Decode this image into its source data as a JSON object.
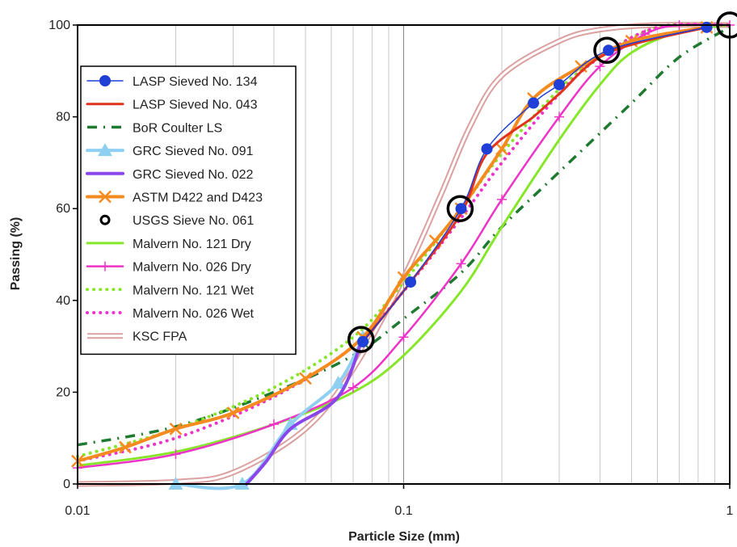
{
  "chart_data": {
    "type": "line",
    "title": "",
    "xlabel": "Particle Size (mm)",
    "ylabel": "Passing (%)",
    "xscale": "log",
    "xlim": [
      0.01,
      1
    ],
    "ylim": [
      0,
      100
    ],
    "x_ticks": [
      "0.01",
      "0.1",
      "1"
    ],
    "y_ticks": [
      "0",
      "20",
      "40",
      "60",
      "80",
      "100"
    ],
    "grid": "vertical minor log gridlines",
    "legend_position": "left",
    "series": [
      {
        "name": "LASP Sieved No. 134",
        "color": "#1f3fd6",
        "style": "line-dot",
        "marker": "circle-filled",
        "x": [
          0.075,
          0.105,
          0.15,
          0.18,
          0.25,
          0.3,
          0.425,
          0.85
        ],
        "y": [
          31,
          44,
          60,
          73,
          83,
          87,
          94.5,
          99.5
        ],
        "show_markers": true
      },
      {
        "name": "LASP Sieved No. 043",
        "color": "#e0321c",
        "style": "solid",
        "x": [
          0.075,
          0.105,
          0.15,
          0.18,
          0.25,
          0.3,
          0.425,
          0.85
        ],
        "y": [
          31,
          44,
          59,
          72,
          80,
          85,
          94,
          99.5
        ]
      },
      {
        "name": "BoR Coulter LS",
        "color": "#1e7a2e",
        "style": "dashdot",
        "x": [
          0.01,
          0.02,
          0.04,
          0.07,
          0.1,
          0.15,
          0.2,
          0.3,
          0.5,
          0.7,
          1.0
        ],
        "y": [
          8.5,
          12.5,
          20,
          28,
          36,
          46,
          56,
          68,
          83,
          93,
          99.5
        ]
      },
      {
        "name": "GRC Sieved No. 091",
        "color": "#8fd0f2",
        "style": "thick",
        "marker": "triangle",
        "x": [
          0.02,
          0.032,
          0.045,
          0.063,
          0.075
        ],
        "y": [
          0,
          0,
          13,
          22,
          32
        ],
        "show_markers": true
      },
      {
        "name": "GRC Sieved No. 022",
        "color": "#8a46e8",
        "style": "thick",
        "x": [
          0.033,
          0.038,
          0.045,
          0.063,
          0.075
        ],
        "y": [
          0,
          5,
          12,
          19,
          32
        ]
      },
      {
        "name": "ASTM D422 and D423",
        "color": "#f58a1f",
        "style": "thick",
        "marker": "x",
        "x": [
          0.01,
          0.014,
          0.02,
          0.03,
          0.05,
          0.075,
          0.1,
          0.125,
          0.15,
          0.2,
          0.25,
          0.35,
          0.5,
          0.85
        ],
        "y": [
          5,
          8,
          12,
          15.5,
          23,
          32,
          45,
          53,
          60,
          73,
          84,
          91,
          96.5,
          99.5
        ],
        "show_markers": true
      },
      {
        "name": "USGS Sieve No. 061",
        "color": "#000000",
        "style": "none",
        "marker": "circle-open",
        "x": [
          0.074,
          0.149,
          0.42,
          1.0
        ],
        "y": [
          31.5,
          60,
          94.5,
          100
        ],
        "show_markers": true
      },
      {
        "name": "Malvern No. 121 Dry",
        "color": "#86e62a",
        "style": "solid",
        "x": [
          0.01,
          0.02,
          0.04,
          0.07,
          0.1,
          0.15,
          0.2,
          0.3,
          0.4,
          0.5,
          0.7,
          1.0
        ],
        "y": [
          4,
          7,
          13,
          20,
          28,
          42,
          56,
          75,
          87,
          94,
          98.5,
          100
        ]
      },
      {
        "name": "Malvern No. 026 Dry",
        "color": "#ee33c8",
        "style": "solid-plus",
        "marker": "plus",
        "x": [
          0.01,
          0.02,
          0.04,
          0.07,
          0.1,
          0.15,
          0.2,
          0.3,
          0.4,
          0.55,
          0.7,
          1.0
        ],
        "y": [
          3.5,
          6.5,
          13,
          21,
          32,
          48,
          62,
          80,
          91,
          98,
          100,
          100
        ],
        "show_markers": true
      },
      {
        "name": "Malvern No. 121 Wet",
        "color": "#86e62a",
        "style": "dotted",
        "x": [
          0.01,
          0.02,
          0.04,
          0.07,
          0.1,
          0.15,
          0.2,
          0.3,
          0.4,
          0.6,
          1.0
        ],
        "y": [
          6,
          12,
          21,
          32,
          44,
          60,
          72,
          86,
          93,
          99.5,
          100
        ]
      },
      {
        "name": "Malvern No. 026 Wet",
        "color": "#ee33c8",
        "style": "dotted",
        "x": [
          0.01,
          0.02,
          0.04,
          0.07,
          0.1,
          0.15,
          0.2,
          0.3,
          0.4,
          0.6,
          1.0
        ],
        "y": [
          5,
          10,
          19,
          30,
          42,
          58,
          70,
          85,
          93,
          99.5,
          100
        ]
      },
      {
        "name": "KSC FPA",
        "color": "#dba0a0",
        "style": "double",
        "x": [
          0.01,
          0.02,
          0.03,
          0.05,
          0.07,
          0.1,
          0.13,
          0.16,
          0.2,
          0.3,
          0.4,
          0.6,
          1.0
        ],
        "y": [
          0,
          0.5,
          2.5,
          12,
          25,
          45,
          63,
          78,
          89,
          96.5,
          99,
          100,
          100
        ]
      }
    ]
  }
}
